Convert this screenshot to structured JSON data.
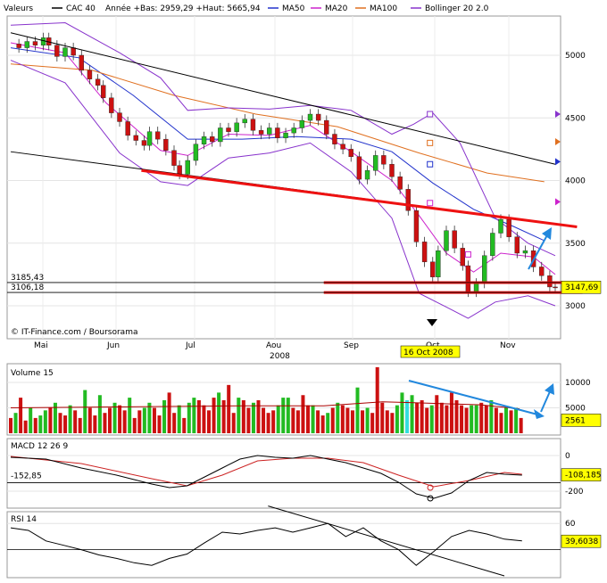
{
  "legend": {
    "label": "Valeurs",
    "symbol": "CAC 40",
    "range": "Année +Bas: 2959,29 +Haut: 5665,94",
    "ma50": "MA50",
    "ma20": "MA20",
    "ma100": "MA100",
    "bollinger": "Bollinger 20 2.0",
    "colors": {
      "price_line": "#000000",
      "ma50": "#2233cc",
      "ma20": "#cc22cc",
      "ma100": "#e07020",
      "bollinger": "#8833cc",
      "up_candle": "#22bb22",
      "down_candle": "#cc1111",
      "trend_red": "#ee1111",
      "arrow_blue": "#2288dd"
    }
  },
  "source_label": "© IT-Finance.com / Boursorama",
  "date_marker": "16 Oct 2008",
  "chart_data": [
    {
      "type": "candlestick",
      "title": "CAC 40",
      "months": [
        "Mai",
        "Jun",
        "Jul",
        "Aou",
        "Sep",
        "Oct",
        "Nov"
      ],
      "year_label": "2008",
      "y_ticks": [
        "5000",
        "4500",
        "4000",
        "3500",
        "3000"
      ],
      "ylim": [
        2850,
        5350
      ],
      "level_labels": {
        "upper": "3185,43",
        "lower": "3106,18"
      },
      "last_label": "3147,69",
      "price_path": [
        [
          0,
          5090
        ],
        [
          3,
          5060
        ],
        [
          6,
          5110
        ],
        [
          9,
          5080
        ],
        [
          12,
          5140
        ],
        [
          14,
          5080
        ],
        [
          17,
          4990
        ],
        [
          20,
          5060
        ],
        [
          23,
          5000
        ],
        [
          26,
          4880
        ],
        [
          29,
          4810
        ],
        [
          32,
          4760
        ],
        [
          34,
          4660
        ],
        [
          37,
          4540
        ],
        [
          40,
          4470
        ],
        [
          43,
          4360
        ],
        [
          46,
          4320
        ],
        [
          49,
          4280
        ],
        [
          51,
          4390
        ],
        [
          54,
          4330
        ],
        [
          57,
          4240
        ],
        [
          60,
          4120
        ],
        [
          62,
          4050
        ],
        [
          65,
          4160
        ],
        [
          68,
          4290
        ],
        [
          71,
          4350
        ],
        [
          74,
          4310
        ],
        [
          77,
          4420
        ],
        [
          80,
          4390
        ],
        [
          83,
          4460
        ],
        [
          86,
          4490
        ],
        [
          89,
          4400
        ],
        [
          92,
          4370
        ],
        [
          95,
          4420
        ],
        [
          98,
          4340
        ],
        [
          101,
          4380
        ],
        [
          104,
          4420
        ],
        [
          107,
          4480
        ],
        [
          110,
          4530
        ],
        [
          113,
          4480
        ],
        [
          116,
          4370
        ],
        [
          119,
          4290
        ],
        [
          122,
          4250
        ],
        [
          125,
          4190
        ],
        [
          128,
          4010
        ],
        [
          131,
          4080
        ],
        [
          134,
          4200
        ],
        [
          137,
          4130
        ],
        [
          140,
          4030
        ],
        [
          143,
          3930
        ],
        [
          146,
          3760
        ],
        [
          149,
          3510
        ],
        [
          152,
          3350
        ],
        [
          155,
          3230
        ],
        [
          157,
          3440
        ],
        [
          160,
          3600
        ],
        [
          163,
          3460
        ],
        [
          166,
          3320
        ],
        [
          168,
          3110
        ],
        [
          171,
          3180
        ],
        [
          174,
          3400
        ],
        [
          177,
          3580
        ],
        [
          180,
          3690
        ],
        [
          183,
          3550
        ],
        [
          186,
          3420
        ],
        [
          189,
          3440
        ],
        [
          192,
          3310
        ],
        [
          195,
          3240
        ],
        [
          198,
          3150
        ],
        [
          200,
          3148
        ]
      ],
      "lines": [
        {
          "name": "MA20",
          "points": [
            [
              0,
              5100
            ],
            [
              20,
              5020
            ],
            [
              35,
              4620
            ],
            [
              55,
              4240
            ],
            [
              65,
              4200
            ],
            [
              80,
              4370
            ],
            [
              95,
              4360
            ],
            [
              110,
              4440
            ],
            [
              125,
              4230
            ],
            [
              140,
              4000
            ],
            [
              150,
              3720
            ],
            [
              160,
              3420
            ],
            [
              170,
              3270
            ],
            [
              180,
              3420
            ],
            [
              192,
              3390
            ],
            [
              200,
              3250
            ]
          ]
        },
        {
          "name": "MA50",
          "points": [
            [
              0,
              5060
            ],
            [
              25,
              4980
            ],
            [
              45,
              4680
            ],
            [
              65,
              4330
            ],
            [
              85,
              4330
            ],
            [
              105,
              4350
            ],
            [
              125,
              4330
            ],
            [
              140,
              4230
            ],
            [
              155,
              3980
            ],
            [
              170,
              3770
            ],
            [
              185,
              3630
            ],
            [
              196,
              3520
            ]
          ]
        },
        {
          "name": "MA100",
          "points": [
            [
              0,
              4930
            ],
            [
              30,
              4880
            ],
            [
              60,
              4680
            ],
            [
              90,
              4530
            ],
            [
              120,
              4430
            ],
            [
              150,
              4220
            ],
            [
              175,
              4060
            ],
            [
              196,
              3990
            ]
          ]
        },
        {
          "name": "Bollinger sup",
          "points": [
            [
              0,
              5240
            ],
            [
              20,
              5260
            ],
            [
              40,
              5020
            ],
            [
              55,
              4820
            ],
            [
              65,
              4560
            ],
            [
              80,
              4580
            ],
            [
              95,
              4570
            ],
            [
              110,
              4600
            ],
            [
              125,
              4560
            ],
            [
              140,
              4370
            ],
            [
              148,
              4450
            ],
            [
              155,
              4540
            ],
            [
              165,
              4300
            ],
            [
              178,
              3700
            ],
            [
              190,
              3500
            ],
            [
              200,
              3400
            ]
          ]
        },
        {
          "name": "Bollinger inf",
          "points": [
            [
              0,
              4960
            ],
            [
              20,
              4780
            ],
            [
              40,
              4220
            ],
            [
              55,
              3990
            ],
            [
              65,
              3960
            ],
            [
              80,
              4180
            ],
            [
              95,
              4220
            ],
            [
              110,
              4300
            ],
            [
              125,
              4070
            ],
            [
              140,
              3700
            ],
            [
              150,
              3100
            ],
            [
              160,
              2990
            ],
            [
              168,
              2900
            ],
            [
              178,
              3030
            ],
            [
              190,
              3080
            ],
            [
              200,
              3000
            ]
          ]
        }
      ],
      "trend_lines": [
        {
          "name": "resistance",
          "from": [
            0,
            5180
          ],
          "to": [
            200,
            4130
          ]
        },
        {
          "name": "support-oblique",
          "from": [
            0,
            4230
          ],
          "to": [
            149,
            3800
          ]
        },
        {
          "name": "red-trend",
          "from": [
            48,
            4080
          ],
          "to": [
            208,
            3630
          ]
        },
        {
          "name": "red-level-1",
          "from": [
            115,
            3185.43
          ],
          "to": [
            210,
            3185.43
          ]
        },
        {
          "name": "red-level-2",
          "from": [
            115,
            3106.18
          ],
          "to": [
            210,
            3106.18
          ]
        }
      ],
      "ma_markers": [
        {
          "series": "Bollinger",
          "x": 154,
          "value": 4530
        },
        {
          "series": "MA100",
          "x": 154,
          "value": 4300
        },
        {
          "series": "MA50",
          "x": 154,
          "value": 4130
        },
        {
          "series": "MA20",
          "x": 154,
          "value": 3820
        },
        {
          "series": "MA20",
          "x": 168,
          "value": 3410
        }
      ],
      "right_markers": [
        {
          "series": "Bollinger",
          "value": 4530
        },
        {
          "series": "MA100",
          "value": 4310
        },
        {
          "series": "MA50",
          "value": 4150
        },
        {
          "series": "MA20",
          "value": 3830
        }
      ]
    },
    {
      "type": "bar",
      "title": "Volume 15",
      "y_ticks": [
        "10000",
        "5000"
      ],
      "ylim": [
        0,
        13000
      ],
      "last_label": "2561",
      "values": [
        3000,
        4000,
        7000,
        2500,
        5000,
        3000,
        3500,
        4500,
        5000,
        6000,
        4000,
        3500,
        5500,
        4500,
        3000,
        8500,
        5000,
        3500,
        7500,
        4000,
        5000,
        6000,
        5500,
        4500,
        7000,
        3000,
        4500,
        5000,
        6000,
        5000,
        3500,
        6500,
        8000,
        4000,
        5500,
        3000,
        6000,
        7000,
        6500,
        5500,
        4500,
        7000,
        8000,
        6500,
        9500,
        4000,
        7000,
        6500,
        5000,
        6000,
        6500,
        5000,
        4000,
        4500,
        5500,
        7000,
        7000,
        5000,
        4500,
        7500,
        5500,
        5500,
        4500,
        3500,
        4000,
        5000,
        6000,
        5500,
        5000,
        4500,
        9000,
        4500,
        5000,
        4000,
        13000,
        6000,
        4500,
        4000,
        5500,
        8000,
        6500,
        7500,
        6000,
        6500,
        5000,
        5500,
        7500,
        6000,
        5500,
        8000,
        6500,
        5500,
        5000,
        5500,
        5500,
        6000,
        5500,
        6500,
        5000,
        4000,
        5000,
        4500,
        5000,
        3000
      ],
      "ma_points": [
        [
          0,
          5000
        ],
        [
          30,
          5200
        ],
        [
          60,
          5400
        ],
        [
          80,
          5400
        ],
        [
          95,
          6200
        ],
        [
          103,
          6000
        ],
        [
          120,
          5600
        ],
        [
          130,
          4800
        ]
      ],
      "trend_line": {
        "from": [
          108,
          8500
        ],
        "to": [
          134,
          4200
        ]
      }
    },
    {
      "type": "line",
      "title": "MACD 12 26 9",
      "y_ticks": [
        "0",
        "-200"
      ],
      "ylim": [
        -260,
        40
      ],
      "level_label": "-152,85",
      "last_label": "-108,185",
      "macd": [
        [
          0,
          -10
        ],
        [
          10,
          -20
        ],
        [
          20,
          -70
        ],
        [
          30,
          -110
        ],
        [
          40,
          -160
        ],
        [
          45,
          -180
        ],
        [
          50,
          -170
        ],
        [
          55,
          -120
        ],
        [
          60,
          -70
        ],
        [
          65,
          -20
        ],
        [
          70,
          0
        ],
        [
          75,
          -10
        ],
        [
          80,
          -15
        ],
        [
          85,
          0
        ],
        [
          90,
          -20
        ],
        [
          95,
          -40
        ],
        [
          100,
          -70
        ],
        [
          105,
          -100
        ],
        [
          110,
          -150
        ],
        [
          115,
          -215
        ],
        [
          120,
          -240
        ],
        [
          125,
          -210
        ],
        [
          130,
          -140
        ],
        [
          135,
          -95
        ],
        [
          140,
          -105
        ],
        [
          145,
          -110
        ]
      ],
      "signal": [
        [
          0,
          -5
        ],
        [
          20,
          -45
        ],
        [
          40,
          -130
        ],
        [
          50,
          -170
        ],
        [
          60,
          -110
        ],
        [
          70,
          -30
        ],
        [
          80,
          -15
        ],
        [
          90,
          -15
        ],
        [
          100,
          -40
        ],
        [
          110,
          -110
        ],
        [
          120,
          -175
        ],
        [
          130,
          -140
        ],
        [
          140,
          -95
        ],
        [
          145,
          -105
        ]
      ]
    },
    {
      "type": "line",
      "title": "RSI 14",
      "y_ticks": [
        "60"
      ],
      "ylim": [
        0,
        80
      ],
      "last_label": "39,6038",
      "values": [
        [
          0,
          55
        ],
        [
          5,
          52
        ],
        [
          10,
          40
        ],
        [
          15,
          35
        ],
        [
          20,
          30
        ],
        [
          25,
          24
        ],
        [
          30,
          20
        ],
        [
          35,
          15
        ],
        [
          40,
          12
        ],
        [
          45,
          20
        ],
        [
          50,
          25
        ],
        [
          55,
          38
        ],
        [
          60,
          50
        ],
        [
          65,
          48
        ],
        [
          70,
          52
        ],
        [
          75,
          55
        ],
        [
          80,
          50
        ],
        [
          85,
          55
        ],
        [
          90,
          60
        ],
        [
          95,
          45
        ],
        [
          100,
          55
        ],
        [
          105,
          40
        ],
        [
          110,
          30
        ],
        [
          115,
          12
        ],
        [
          120,
          28
        ],
        [
          125,
          45
        ],
        [
          130,
          52
        ],
        [
          135,
          48
        ],
        [
          140,
          42
        ],
        [
          145,
          40
        ]
      ],
      "trend_line": {
        "from": [
          73,
          80
        ],
        "to": [
          140,
          0
        ]
      }
    }
  ]
}
